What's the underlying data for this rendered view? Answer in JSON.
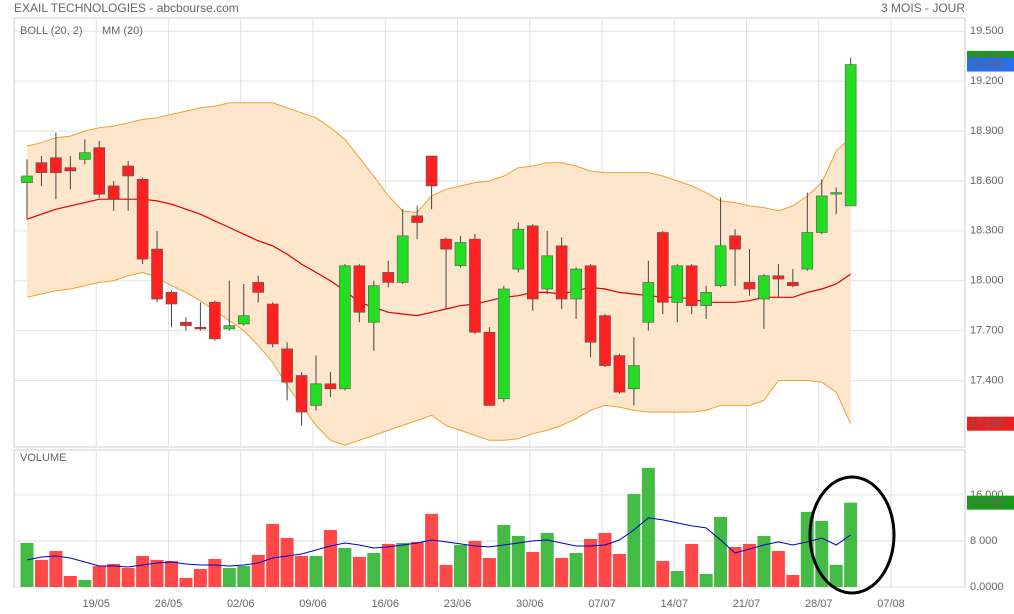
{
  "header": {
    "title": "EXAIL TECHNOLOGIES - abcbourse.com",
    "period": "3 MOIS - JOUR"
  },
  "chart_data": [
    {
      "type": "candlestick",
      "up_color": "#22dd22",
      "down_color": "#ff2020",
      "open": [
        18.59,
        18.71,
        18.74,
        18.68,
        18.73,
        18.8,
        18.57,
        18.69,
        18.61,
        18.19,
        17.93,
        17.75,
        17.72,
        17.87,
        17.71,
        17.74,
        17.99,
        17.86,
        17.59,
        17.43,
        17.25,
        17.38,
        17.35,
        18.09,
        17.75,
        18.05,
        17.99,
        18.39,
        18.75,
        18.25,
        18.09,
        18.25,
        17.69,
        17.29,
        18.07,
        18.33,
        17.95,
        18.21,
        17.89,
        18.09,
        17.79,
        17.55,
        17.35,
        17.75,
        18.29,
        17.87,
        18.09,
        17.85,
        17.97,
        18.27,
        17.99,
        17.89,
        18.03,
        17.99,
        18.07,
        18.29,
        18.53,
        18.45,
        null,
        null,
        null
      ],
      "high": [
        18.73,
        18.75,
        18.89,
        18.75,
        18.85,
        18.84,
        18.6,
        18.72,
        18.62,
        18.3,
        17.94,
        17.78,
        17.87,
        17.88,
        18.0,
        17.98,
        18.03,
        17.87,
        17.63,
        17.45,
        17.55,
        17.45,
        18.1,
        18.1,
        18.0,
        18.12,
        18.43,
        18.45,
        18.75,
        18.26,
        18.27,
        18.28,
        17.72,
        17.97,
        18.35,
        18.34,
        18.3,
        18.26,
        18.08,
        18.1,
        17.8,
        17.56,
        17.66,
        18.12,
        18.3,
        18.1,
        18.1,
        17.97,
        18.5,
        18.31,
        18.19,
        18.04,
        18.1,
        18.07,
        18.53,
        18.61,
        18.56,
        19.34,
        null,
        null,
        null
      ],
      "low": [
        18.37,
        18.57,
        18.49,
        18.55,
        18.7,
        18.5,
        18.42,
        18.42,
        18.1,
        17.87,
        17.72,
        17.7,
        17.7,
        17.64,
        17.7,
        17.73,
        17.87,
        17.6,
        17.28,
        17.13,
        17.22,
        17.3,
        17.34,
        17.75,
        17.58,
        17.96,
        17.98,
        18.25,
        18.43,
        17.83,
        18.08,
        17.68,
        17.25,
        17.27,
        18.05,
        17.82,
        17.92,
        17.83,
        17.77,
        17.54,
        17.48,
        17.32,
        17.25,
        17.7,
        17.8,
        17.75,
        17.8,
        17.77,
        17.96,
        17.97,
        17.91,
        17.71,
        17.9,
        17.96,
        18.06,
        18.28,
        18.4,
        18.45,
        null,
        null,
        null
      ],
      "close": [
        18.63,
        18.65,
        18.65,
        18.66,
        18.77,
        18.52,
        18.49,
        18.63,
        18.13,
        17.89,
        17.86,
        17.73,
        17.71,
        17.65,
        17.73,
        17.79,
        17.93,
        17.62,
        17.39,
        17.21,
        17.38,
        17.35,
        18.09,
        17.81,
        17.97,
        17.99,
        18.27,
        18.35,
        18.57,
        18.19,
        18.23,
        17.69,
        17.25,
        17.95,
        18.31,
        17.89,
        18.15,
        17.89,
        18.07,
        17.63,
        17.49,
        17.33,
        17.49,
        17.99,
        17.87,
        18.09,
        17.85,
        17.93,
        18.21,
        18.19,
        17.95,
        18.03,
        18.01,
        17.97,
        18.29,
        18.51,
        18.53,
        19.3,
        null,
        null,
        null
      ],
      "bands": {
        "name": "BOLL (20, 2)",
        "color": "#f0a030",
        "fill": "#fde6cc",
        "upper": [
          18.81,
          18.83,
          18.86,
          18.87,
          18.9,
          18.92,
          18.93,
          18.95,
          18.97,
          18.98,
          19.0,
          19.02,
          19.04,
          19.05,
          19.07,
          19.07,
          19.07,
          19.07,
          19.04,
          19.01,
          18.98,
          18.92,
          18.85,
          18.74,
          18.63,
          18.51,
          18.42,
          18.41,
          18.51,
          18.55,
          18.57,
          18.59,
          18.6,
          18.63,
          18.68,
          18.69,
          18.71,
          18.71,
          18.69,
          18.66,
          18.65,
          18.65,
          18.65,
          18.65,
          18.63,
          18.6,
          18.57,
          18.53,
          18.48,
          18.47,
          18.45,
          18.44,
          18.42,
          18.45,
          18.51,
          18.59,
          18.78,
          18.86,
          null,
          null,
          null
        ],
        "lower": [
          17.9,
          17.92,
          17.94,
          17.95,
          17.97,
          17.99,
          18.0,
          18.03,
          18.05,
          18.02,
          17.97,
          17.93,
          17.88,
          17.82,
          17.76,
          17.7,
          17.61,
          17.51,
          17.37,
          17.25,
          17.13,
          17.04,
          17.01,
          17.04,
          17.07,
          17.1,
          17.13,
          17.16,
          17.19,
          17.13,
          17.1,
          17.07,
          17.04,
          17.04,
          17.05,
          17.08,
          17.1,
          17.13,
          17.17,
          17.22,
          17.25,
          17.24,
          17.22,
          17.21,
          17.21,
          17.21,
          17.21,
          17.22,
          17.25,
          17.25,
          17.25,
          17.28,
          17.4,
          17.4,
          17.4,
          17.39,
          17.33,
          17.14,
          null,
          null,
          null
        ]
      },
      "ma": {
        "name": "MM (20)",
        "color": "#dd0000",
        "values": [
          18.37,
          18.4,
          18.43,
          18.45,
          18.47,
          18.49,
          18.49,
          18.49,
          18.49,
          18.48,
          18.46,
          18.43,
          18.4,
          18.36,
          18.32,
          18.28,
          18.24,
          18.21,
          18.16,
          18.1,
          18.05,
          18.0,
          17.94,
          17.87,
          17.84,
          17.81,
          17.8,
          17.79,
          17.81,
          17.83,
          17.85,
          17.86,
          17.88,
          17.9,
          17.91,
          17.93,
          17.93,
          17.92,
          17.94,
          17.96,
          17.95,
          17.93,
          17.92,
          17.91,
          17.9,
          17.9,
          17.89,
          17.87,
          17.87,
          17.87,
          17.88,
          17.9,
          17.9,
          17.9,
          17.93,
          17.95,
          17.98,
          18.04,
          null,
          null,
          null
        ]
      },
      "ylim": [
        17.0,
        19.58
      ],
      "yticks": [
        {
          "value": 17.4,
          "label": "17.400"
        },
        {
          "value": 17.7,
          "label": "17.700"
        },
        {
          "value": 18.0,
          "label": "18.000"
        },
        {
          "value": 18.3,
          "label": "18.300"
        },
        {
          "value": 18.6,
          "label": "18.600"
        },
        {
          "value": 18.9,
          "label": "18.900"
        },
        {
          "value": 19.2,
          "label": "19.200"
        },
        {
          "value": 19.5,
          "label": "19.500"
        }
      ],
      "grid": true,
      "last_labels": [
        {
          "value": 19.34,
          "label": "19.340",
          "color": "#1a9a1a"
        },
        {
          "value": 19.3,
          "label": "19.300",
          "color": "#2a6ef0"
        },
        {
          "value": 17.14,
          "label": "17.140",
          "color": "#e82020"
        }
      ]
    },
    {
      "type": "bar",
      "title": "VOLUME",
      "categories": [
        null,
        null,
        null,
        null,
        null,
        "19/05",
        null,
        null,
        null,
        null,
        "26/05",
        null,
        null,
        null,
        null,
        "02/06",
        null,
        null,
        null,
        null,
        "09/06",
        null,
        null,
        null,
        null,
        "16/06",
        null,
        null,
        null,
        null,
        "23/06",
        null,
        null,
        null,
        null,
        "30/06",
        null,
        null,
        null,
        null,
        "07/07",
        null,
        null,
        null,
        null,
        "14/07",
        null,
        null,
        null,
        null,
        "21/07",
        null,
        null,
        null,
        null,
        "28/07",
        null,
        null,
        null,
        null,
        "07/08"
      ],
      "up_color": "#44bb44",
      "down_color": "#ff4848",
      "values": [
        7650,
        4700,
        6260,
        1910,
        1220,
        3650,
        4000,
        3300,
        5390,
        4700,
        4520,
        1570,
        3130,
        4870,
        3300,
        3650,
        5570,
        10960,
        8520,
        5390,
        5390,
        9910,
        6780,
        5220,
        5910,
        7480,
        7650,
        7830,
        12700,
        3830,
        7300,
        8000,
        5040,
        10780,
        8870,
        6090,
        9390,
        5040,
        5910,
        8350,
        9390,
        5740,
        16170,
        20700,
        4520,
        2780,
        7480,
        2260,
        12170,
        6960,
        7480,
        8870,
        6260,
        2090,
        13040,
        11480,
        3830,
        14653,
        null,
        null,
        null
      ],
      "ma": {
        "color": "#0000cc",
        "values": [
          4700,
          5220,
          5390,
          5040,
          4350,
          3650,
          3650,
          3480,
          3830,
          4170,
          4350,
          4000,
          3830,
          3830,
          3650,
          3830,
          4170,
          5040,
          5390,
          5740,
          6430,
          7130,
          7650,
          7300,
          6780,
          6960,
          7300,
          7650,
          8170,
          7830,
          7480,
          7130,
          6960,
          7300,
          7650,
          8000,
          8170,
          7650,
          7130,
          7130,
          7300,
          8170,
          9910,
          12000,
          11650,
          11130,
          10610,
          10260,
          8170,
          5910,
          6610,
          7300,
          7830,
          7300,
          7830,
          8520,
          7300,
          9040,
          null,
          null,
          null
        ]
      },
      "ylim": [
        0,
        23800
      ],
      "yticks": [
        {
          "value": 0,
          "label": "0.0000"
        },
        {
          "value": 8000,
          "label": "8 000"
        },
        {
          "value": 16000,
          "label": "16 000"
        }
      ],
      "grid": true,
      "last_labels": [
        {
          "value": 14653,
          "label": "14 653",
          "color": "#1a9a1a"
        }
      ]
    }
  ]
}
